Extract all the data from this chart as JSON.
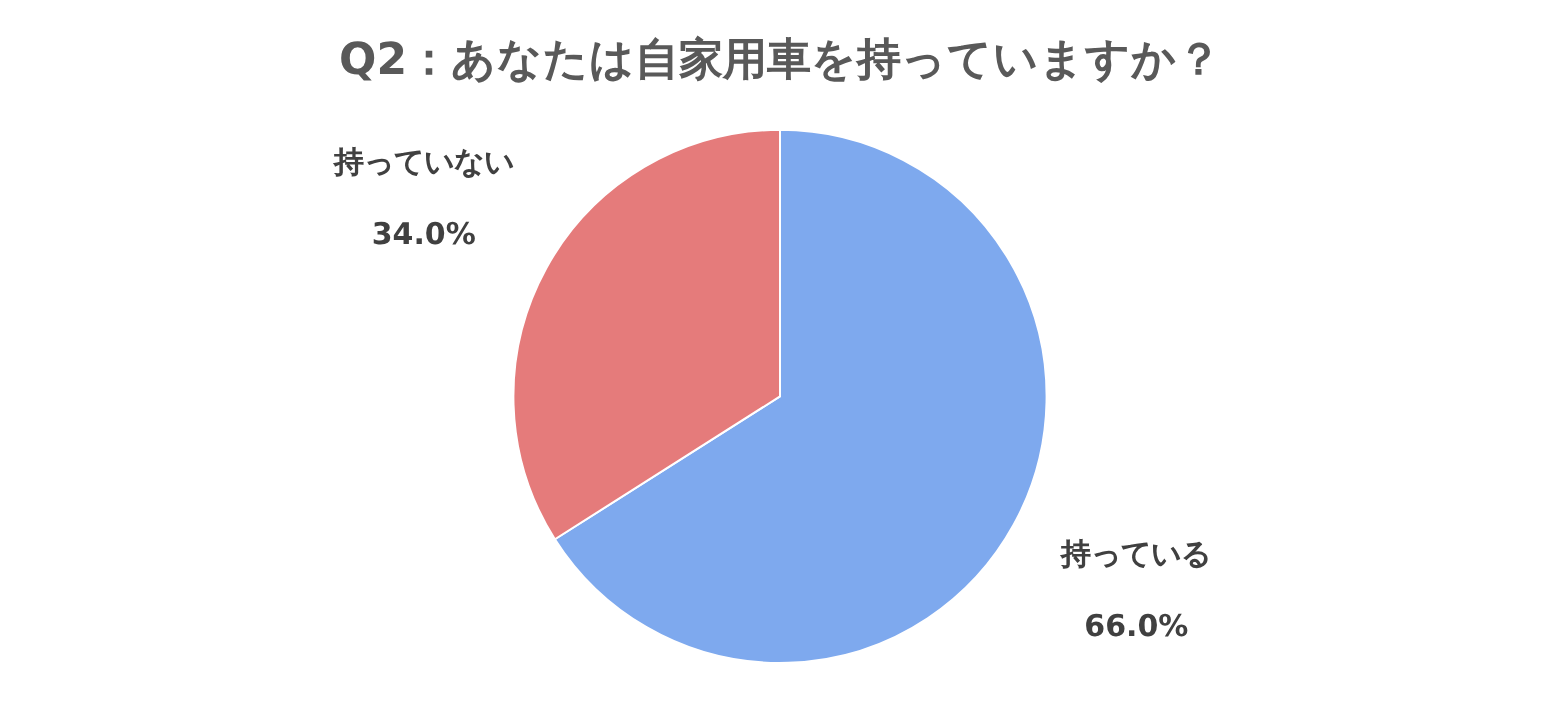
{
  "chart_data": {
    "type": "pie",
    "title": "Q2：あなたは自家用車を持っていますか？",
    "categories": [
      "持っている",
      "持っていない"
    ],
    "values": [
      66.0,
      34.0
    ],
    "colors": [
      "#7ea9ee",
      "#e57b7b"
    ],
    "value_labels": [
      "66.0%",
      "34.0%"
    ],
    "legend": false
  }
}
